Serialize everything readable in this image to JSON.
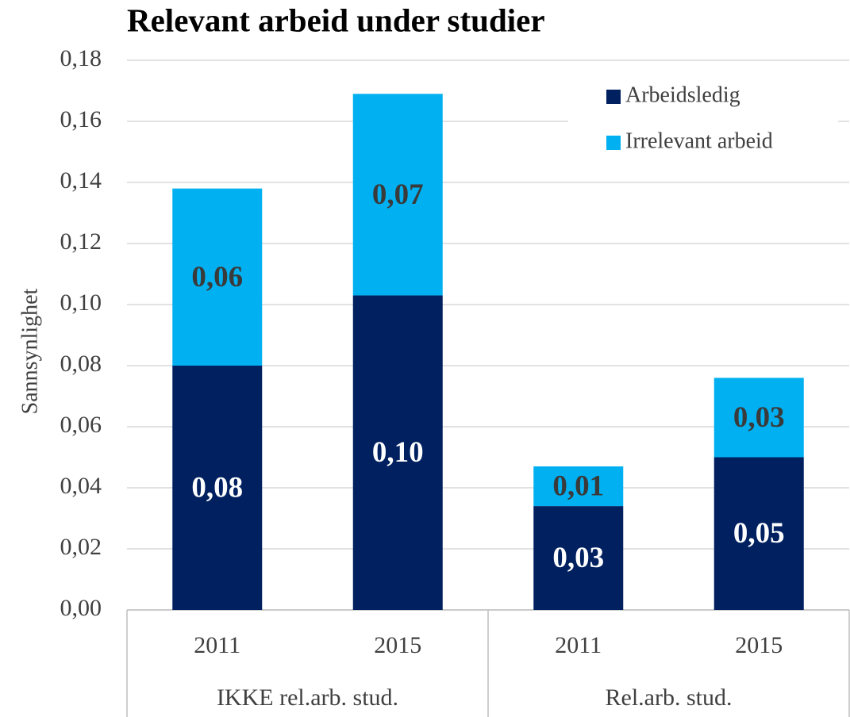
{
  "chart_data": {
    "type": "stacked_bar",
    "title": "Relevant arbeid under studier",
    "y_label": "Sannsynlighet",
    "categories": [
      "2011",
      "2015",
      "2011",
      "2015"
    ],
    "groups": [
      "IKKE rel.arb. stud.",
      "Rel.arb. stud."
    ],
    "series": [
      {
        "name": "Arbeidsledig",
        "color": "#002060",
        "values": [
          0.08,
          0.103,
          0.034,
          0.05
        ],
        "value_labels": [
          "0,08",
          "0,10",
          "0,03",
          "0,05"
        ]
      },
      {
        "name": "Irrelevant arbeid",
        "color": "#00b0f0",
        "values": [
          0.058,
          0.066,
          0.013,
          0.026
        ],
        "value_labels": [
          "0,06",
          "0,07",
          "0,01",
          "0,03"
        ]
      }
    ],
    "ylim": [
      0,
      0.18
    ],
    "yticks": [
      {
        "value": 0,
        "label": "0,00"
      },
      {
        "value": 0.02,
        "label": "0,02"
      },
      {
        "value": 0.04,
        "label": "0,04"
      },
      {
        "value": 0.06,
        "label": "0,06"
      },
      {
        "value": 0.08,
        "label": "0,08"
      },
      {
        "value": 0.1,
        "label": "0,10"
      },
      {
        "value": 0.12,
        "label": "0,12"
      },
      {
        "value": 0.14,
        "label": "0,14"
      },
      {
        "value": 0.16,
        "label": "0,16"
      },
      {
        "value": 0.18,
        "label": "0,18"
      }
    ],
    "grid": true,
    "legend": "top-right"
  }
}
